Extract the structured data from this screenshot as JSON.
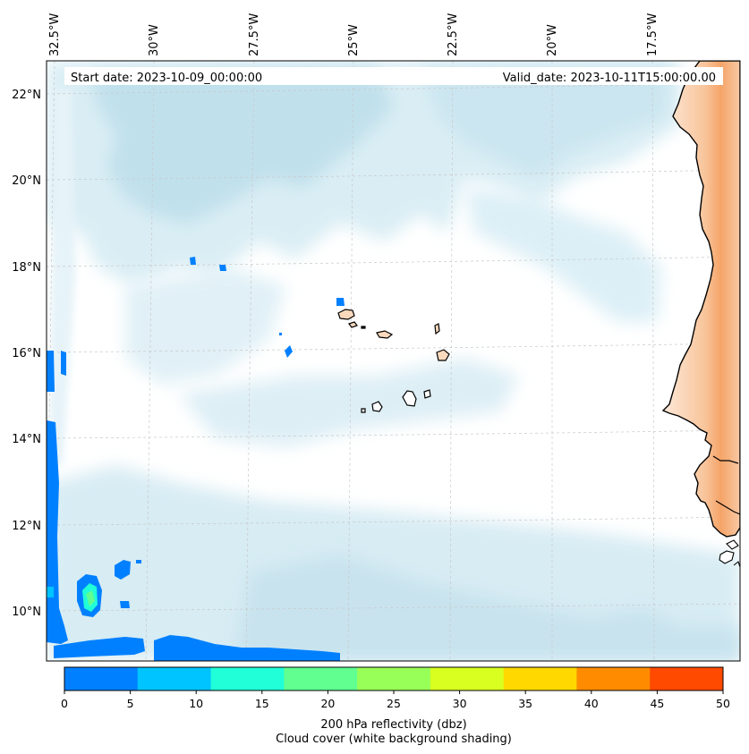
{
  "header": {
    "start_label": "Start date: 2023-10-09_00:00:00",
    "valid_label": "Valid_date: 2023-10-11T15:00:00.00"
  },
  "axes": {
    "lon_labels": [
      "32.5°W",
      "30°W",
      "27.5°W",
      "25°W",
      "22.5°W",
      "20°W",
      "17.5°W"
    ],
    "lat_labels": [
      "22°N",
      "20°N",
      "18°N",
      "16°N",
      "14°N",
      "12°N",
      "10°N"
    ],
    "gridlines": true
  },
  "colorbar": {
    "ticks": [
      "0",
      "5",
      "10",
      "15",
      "20",
      "25",
      "30",
      "35",
      "40",
      "45",
      "50"
    ],
    "colors": [
      "#0080ff",
      "#00c4ff",
      "#20ffd8",
      "#60ff90",
      "#98ff58",
      "#d8ff20",
      "#ffd800",
      "#ff8c00",
      "#ff4a00"
    ],
    "label_line1": "200 hPa reflectivity (dbz)",
    "label_line2": "Cloud cover (white background shading)"
  },
  "colors": {
    "cloud": "#cfe7f0",
    "cloud_dense": "#aed6e6",
    "land": "#fbe3cf",
    "land_dense": "#f6b07c",
    "coast": "#000000",
    "grid": "#c8c8c8"
  }
}
